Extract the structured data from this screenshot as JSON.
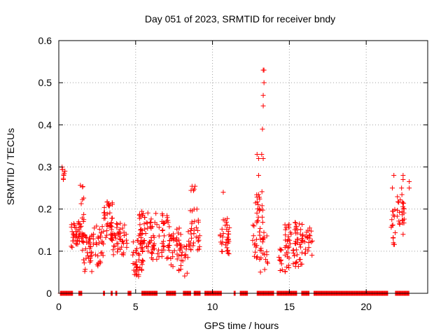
{
  "chart_data": {
    "type": "scatter",
    "title": "Day 051 of 2023, SRMTID for receiver bndy",
    "xlabel": "GPS time / hours",
    "ylabel": "SRMTID / TECUs",
    "xlim": [
      0,
      24
    ],
    "ylim": [
      0,
      0.6
    ],
    "xticks": [
      "0",
      "5",
      "10",
      "15",
      "20"
    ],
    "xtick_values": [
      0,
      5,
      10,
      15,
      20
    ],
    "yticks": [
      "0",
      "0.1",
      "0.2",
      "0.3",
      "0.4",
      "0.5",
      "0.6"
    ],
    "ytick_values": [
      0,
      0.1,
      0.2,
      0.3,
      0.4,
      0.5,
      0.6
    ],
    "grid": true,
    "marker": "+",
    "color": "#ff0000",
    "zero_segments": [
      [
        0.1,
        0.9
      ],
      [
        1.3,
        1.5
      ],
      [
        2.9,
        3.0
      ],
      [
        3.4,
        3.5
      ],
      [
        3.7,
        3.8
      ],
      [
        4.5,
        4.7
      ],
      [
        5.4,
        6.4
      ],
      [
        7.0,
        7.6
      ],
      [
        8.1,
        8.6
      ],
      [
        8.8,
        9.2
      ],
      [
        9.5,
        10.6
      ],
      [
        11.4,
        11.5
      ],
      [
        11.8,
        12.3
      ],
      [
        12.9,
        14.0
      ],
      [
        14.2,
        15.5
      ],
      [
        15.8,
        16.3
      ],
      [
        16.6,
        21.4
      ],
      [
        21.9,
        22.8
      ]
    ],
    "clusters": [
      {
        "x": [
          0.2,
          0.4
        ],
        "y": [
          0.27,
          0.3
        ],
        "n": 6
      },
      {
        "x": [
          0.8,
          1.6
        ],
        "y": [
          0.1,
          0.17
        ],
        "n": 45
      },
      {
        "x": [
          1.4,
          1.7
        ],
        "y": [
          0.17,
          0.26
        ],
        "n": 10
      },
      {
        "x": [
          1.6,
          2.2
        ],
        "y": [
          0.05,
          0.14
        ],
        "n": 35
      },
      {
        "x": [
          2.2,
          2.9
        ],
        "y": [
          0.06,
          0.16
        ],
        "n": 30
      },
      {
        "x": [
          2.9,
          3.5
        ],
        "y": [
          0.12,
          0.22
        ],
        "n": 35
      },
      {
        "x": [
          3.4,
          4.5
        ],
        "y": [
          0.09,
          0.17
        ],
        "n": 45
      },
      {
        "x": [
          4.8,
          5.5
        ],
        "y": [
          0.04,
          0.13
        ],
        "n": 45
      },
      {
        "x": [
          5.2,
          6.2
        ],
        "y": [
          0.1,
          0.2
        ],
        "n": 45
      },
      {
        "x": [
          6.0,
          7.2
        ],
        "y": [
          0.08,
          0.19
        ],
        "n": 55
      },
      {
        "x": [
          7.2,
          8.0
        ],
        "y": [
          0.06,
          0.16
        ],
        "n": 35
      },
      {
        "x": [
          7.8,
          8.4
        ],
        "y": [
          0.04,
          0.12
        ],
        "n": 20
      },
      {
        "x": [
          8.4,
          9.2
        ],
        "y": [
          0.1,
          0.2
        ],
        "n": 35
      },
      {
        "x": [
          8.6,
          8.9
        ],
        "y": [
          0.24,
          0.26
        ],
        "n": 5
      },
      {
        "x": [
          10.5,
          11.1
        ],
        "y": [
          0.09,
          0.16
        ],
        "n": 30
      },
      {
        "x": [
          10.7,
          11.0
        ],
        "y": [
          0.16,
          0.19
        ],
        "n": 6
      },
      {
        "x": [
          12.6,
          13.3
        ],
        "y": [
          0.08,
          0.17
        ],
        "n": 25
      },
      {
        "x": [
          12.8,
          13.3
        ],
        "y": [
          0.17,
          0.26
        ],
        "n": 20
      },
      {
        "x": [
          13.1,
          13.7
        ],
        "y": [
          0.05,
          0.15
        ],
        "n": 15
      },
      {
        "x": [
          14.3,
          15.0
        ],
        "y": [
          0.05,
          0.11
        ],
        "n": 20
      },
      {
        "x": [
          14.7,
          15.2
        ],
        "y": [
          0.09,
          0.17
        ],
        "n": 20
      },
      {
        "x": [
          15.2,
          15.9
        ],
        "y": [
          0.06,
          0.17
        ],
        "n": 45
      },
      {
        "x": [
          16.0,
          16.5
        ],
        "y": [
          0.09,
          0.16
        ],
        "n": 20
      },
      {
        "x": [
          21.6,
          21.9
        ],
        "y": [
          0.11,
          0.2
        ],
        "n": 15
      },
      {
        "x": [
          22.0,
          22.5
        ],
        "y": [
          0.16,
          0.24
        ],
        "n": 25
      }
    ],
    "points": [
      [
        0.3,
        0.27
      ],
      [
        0.4,
        0.29
      ],
      [
        0.35,
        0.285
      ],
      [
        10.7,
        0.24
      ],
      [
        12.9,
        0.33
      ],
      [
        13.0,
        0.32
      ],
      [
        13.2,
        0.33
      ],
      [
        13.3,
        0.32
      ],
      [
        13.25,
        0.39
      ],
      [
        13.3,
        0.445
      ],
      [
        13.3,
        0.47
      ],
      [
        13.35,
        0.5
      ],
      [
        13.3,
        0.53
      ],
      [
        13.35,
        0.53
      ],
      [
        13.0,
        0.28
      ],
      [
        21.7,
        0.25
      ],
      [
        21.8,
        0.28
      ],
      [
        22.3,
        0.25
      ],
      [
        22.4,
        0.27
      ],
      [
        22.4,
        0.28
      ],
      [
        22.8,
        0.25
      ],
      [
        22.8,
        0.265
      ],
      [
        22.4,
        0.14
      ]
    ]
  }
}
